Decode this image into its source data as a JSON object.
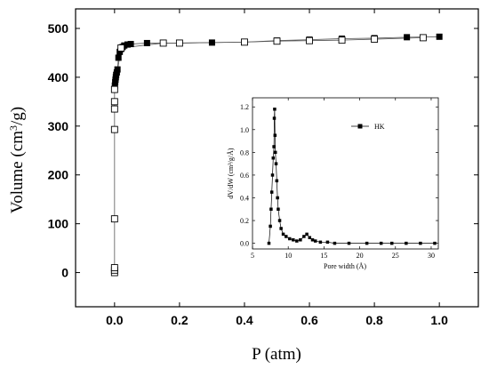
{
  "chart_data": [
    {
      "type": "scatter",
      "xlabel": "P (atm)",
      "ylabel_base": "Volume (cm",
      "ylabel_sup": "3",
      "ylabel_tail": "/g)",
      "xlim": [
        -0.12,
        1.12
      ],
      "ylim": [
        -70,
        540
      ],
      "xticks": [
        "0.0",
        "0.2",
        "0.4",
        "0.6",
        "0.8",
        "1.0"
      ],
      "xtick_values": [
        0,
        0.2,
        0.4,
        0.6,
        0.8,
        1.0
      ],
      "yticks": [
        "0",
        "100",
        "200",
        "300",
        "400",
        "500"
      ],
      "ytick_values": [
        0,
        100,
        200,
        300,
        400,
        500
      ],
      "grid": false,
      "series": [
        {
          "marker": "filled-square",
          "x": [
            0.0,
            0.001,
            0.002,
            0.003,
            0.004,
            0.005,
            0.007,
            0.009,
            0.012,
            0.016,
            0.02,
            0.025,
            0.03,
            0.04,
            0.05,
            0.1,
            0.2,
            0.3,
            0.4,
            0.5,
            0.6,
            0.7,
            0.8,
            0.9,
            1.0
          ],
          "y": [
            375,
            383,
            390,
            395,
            400,
            405,
            410,
            416,
            440,
            452,
            458,
            462,
            465,
            467,
            468,
            470,
            470,
            471,
            472,
            475,
            477,
            479,
            480,
            482,
            483
          ]
        },
        {
          "marker": "open-square",
          "x": [
            0.0,
            0.0,
            0.0,
            0.0,
            0.0,
            0.0,
            0.0,
            0.0,
            0.02,
            0.15,
            0.2,
            0.4,
            0.5,
            0.6,
            0.7,
            0.8,
            0.95
          ],
          "y": [
            0,
            5,
            10,
            110,
            293,
            335,
            350,
            375,
            460,
            470,
            470,
            472,
            474,
            475,
            476,
            478,
            481
          ]
        }
      ]
    },
    {
      "type": "line",
      "xlabel": "Pore width (Å)",
      "ylabel": "dV/dW (cm³/g/Å)",
      "xlim": [
        5,
        31
      ],
      "ylim": [
        -0.05,
        1.28
      ],
      "xticks": [
        "5",
        "10",
        "15",
        "20",
        "25",
        "30"
      ],
      "xtick_values": [
        5,
        10,
        15,
        20,
        25,
        30
      ],
      "yticks": [
        "0.0",
        "0.2",
        "0.4",
        "0.6",
        "0.8",
        "1.0",
        "1.2"
      ],
      "ytick_values": [
        0,
        0.2,
        0.4,
        0.6,
        0.8,
        1.0,
        1.2
      ],
      "grid": false,
      "legend_position": "top-right",
      "series": [
        {
          "name": "HK",
          "marker": "filled-square",
          "x": [
            7.3,
            7.5,
            7.6,
            7.7,
            7.8,
            7.9,
            8.0,
            8.05,
            8.1,
            8.15,
            8.2,
            8.3,
            8.4,
            8.5,
            8.6,
            8.8,
            9.0,
            9.3,
            9.7,
            10.2,
            10.7,
            11.2,
            11.7,
            12.2,
            12.6,
            13.0,
            13.4,
            13.8,
            14.5,
            15.5,
            16.5,
            18.5,
            21.0,
            23.0,
            24.5,
            26.5,
            28.5,
            30.5
          ],
          "y": [
            0.0,
            0.15,
            0.3,
            0.45,
            0.6,
            0.75,
            0.85,
            1.1,
            1.18,
            0.95,
            0.8,
            0.7,
            0.55,
            0.4,
            0.3,
            0.2,
            0.13,
            0.08,
            0.06,
            0.04,
            0.03,
            0.02,
            0.03,
            0.06,
            0.08,
            0.05,
            0.03,
            0.02,
            0.01,
            0.01,
            0.0,
            0.0,
            0.0,
            0.0,
            0.0,
            0.0,
            0.0,
            0.0
          ]
        }
      ]
    }
  ]
}
